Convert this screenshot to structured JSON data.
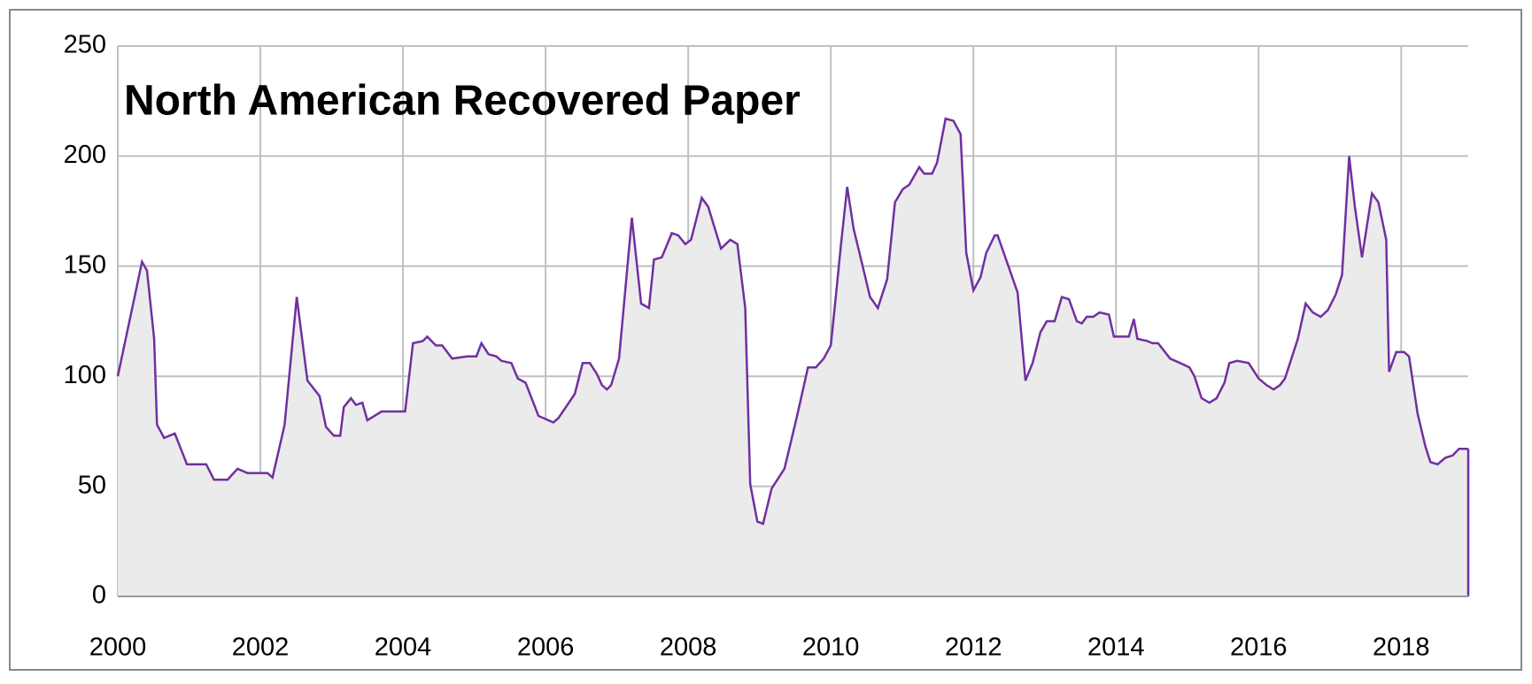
{
  "chart_data": {
    "type": "area",
    "title": "North American Recovered Paper",
    "x": [
      2000,
      2000.34,
      2000.41,
      2000.51,
      2000.55,
      2000.65,
      2000.8,
      2000.97,
      2001.24,
      2001.35,
      2001.54,
      2001.68,
      2001.82,
      2002.1,
      2002.17,
      2002.34,
      2002.51,
      2002.66,
      2002.83,
      2002.92,
      2003.03,
      2003.12,
      2003.17,
      2003.27,
      2003.34,
      2003.43,
      2003.5,
      2003.7,
      2003.93,
      2004.03,
      2004.14,
      2004.28,
      2004.34,
      2004.46,
      2004.55,
      2004.69,
      2004.9,
      2005.03,
      2005.1,
      2005.2,
      2005.31,
      2005.38,
      2005.52,
      2005.61,
      2005.72,
      2005.9,
      2006.04,
      2006.11,
      2006.18,
      2006.41,
      2006.52,
      2006.62,
      2006.72,
      2006.79,
      2006.86,
      2006.92,
      2007.03,
      2007.21,
      2007.34,
      2007.45,
      2007.52,
      2007.63,
      2007.77,
      2007.86,
      2007.96,
      2008.04,
      2008.19,
      2008.28,
      2008.46,
      2008.59,
      2008.69,
      2008.8,
      2008.87,
      2008.97,
      2009.05,
      2009.17,
      2009.35,
      2009.52,
      2009.68,
      2009.79,
      2009.9,
      2010,
      2010.07,
      2010.14,
      2010.23,
      2010.32,
      2010.41,
      2010.55,
      2010.66,
      2010.79,
      2010.9,
      2011.01,
      2011.1,
      2011.24,
      2011.31,
      2011.42,
      2011.49,
      2011.61,
      2011.72,
      2011.82,
      2011.9,
      2012,
      2012.1,
      2012.18,
      2012.3,
      2012.34,
      2012.48,
      2012.62,
      2012.73,
      2012.83,
      2012.94,
      2013.03,
      2013.14,
      2013.24,
      2013.34,
      2013.45,
      2013.52,
      2013.59,
      2013.68,
      2013.77,
      2013.9,
      2013.97,
      2014.18,
      2014.25,
      2014.3,
      2014.44,
      2014.51,
      2014.59,
      2014.76,
      2014.9,
      2015.03,
      2015.1,
      2015.2,
      2015.31,
      2015.41,
      2015.52,
      2015.59,
      2015.7,
      2015.86,
      2016,
      2016.11,
      2016.21,
      2016.3,
      2016.37,
      2016.55,
      2016.66,
      2016.76,
      2016.87,
      2016.97,
      2017.08,
      2017.17,
      2017.27,
      2017.35,
      2017.45,
      2017.59,
      2017.68,
      2017.79,
      2017.83,
      2017.93,
      2018.04,
      2018.11,
      2018.23,
      2018.34,
      2018.41,
      2018.51,
      2018.62,
      2018.72,
      2018.81,
      2018.94
    ],
    "values": [
      100,
      152,
      148,
      117,
      78,
      72,
      74,
      60,
      60,
      53,
      53,
      58,
      56,
      56,
      54,
      78,
      136,
      98,
      91,
      77,
      73,
      73,
      86,
      90,
      87,
      88,
      80,
      84,
      84,
      84,
      115,
      116,
      118,
      114,
      114,
      108,
      109,
      109,
      115,
      110,
      109,
      107,
      106,
      99,
      97,
      82,
      80,
      79,
      81,
      92,
      106,
      106,
      101,
      96,
      94,
      96,
      108,
      172,
      133,
      131,
      153,
      154,
      165,
      164,
      160,
      162,
      181,
      177,
      158,
      162,
      160,
      131,
      51,
      34,
      33,
      49,
      58,
      81,
      104,
      104,
      108,
      114,
      136,
      159,
      186,
      167,
      155,
      136,
      131,
      144,
      179,
      185,
      187,
      195,
      192,
      192,
      197,
      217,
      216,
      210,
      156,
      139,
      145,
      156,
      164,
      164,
      151,
      138,
      98,
      106,
      120,
      125,
      125,
      136,
      135,
      125,
      124,
      127,
      127,
      129,
      128,
      118,
      118,
      126,
      117,
      116,
      115,
      115,
      108,
      106,
      104,
      100,
      90,
      88,
      90,
      97,
      106,
      107,
      106,
      99,
      96,
      94,
      96,
      99,
      117,
      133,
      129,
      127,
      130,
      137,
      146,
      200,
      177,
      154,
      183,
      179,
      162,
      102,
      111,
      111,
      109,
      83,
      68,
      61,
      60,
      63,
      64,
      67,
      67
    ],
    "color": "#7030a0",
    "fill": "#ebebeb",
    "xlim": [
      2000,
      2018.94
    ],
    "xticks": [
      2000,
      2002,
      2004,
      2006,
      2008,
      2010,
      2012,
      2014,
      2016,
      2018
    ],
    "ylim": [
      0,
      250
    ],
    "yticks": [
      0,
      50,
      100,
      150,
      200,
      250
    ],
    "grid": true
  }
}
